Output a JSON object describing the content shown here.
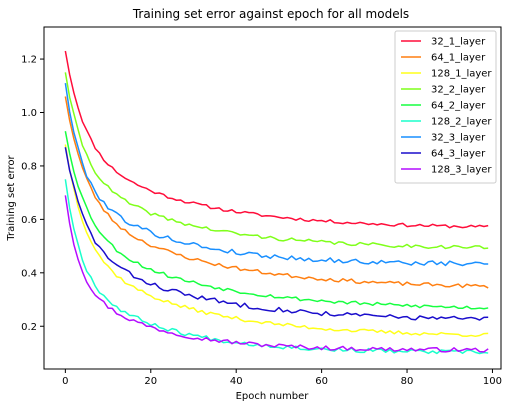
{
  "chart_data": {
    "type": "line",
    "title": "Training set error against epoch for all models",
    "xlabel": "Epoch number",
    "ylabel": "Training set error",
    "xlim": [
      -5,
      102
    ],
    "ylim": [
      0.04,
      1.32
    ],
    "xticks": [
      0,
      20,
      40,
      60,
      80,
      100
    ],
    "yticks": [
      0.2,
      0.4,
      0.6,
      0.8,
      1.0,
      1.2
    ],
    "ytick_labels": [
      "0.2",
      "0.4",
      "0.6",
      "0.8",
      "1.0",
      "1.2"
    ],
    "grid": false,
    "legend_position": "top-right",
    "series": [
      {
        "name": "32_1_layer",
        "color": "#ff0d3a",
        "start": 1.23,
        "end": 0.565,
        "k": 0.07,
        "noise": 0.006,
        "seed": 11
      },
      {
        "name": "64_1_layer",
        "color": "#ff7f11",
        "start": 1.06,
        "end": 0.34,
        "k": 0.065,
        "noise": 0.007,
        "seed": 23
      },
      {
        "name": "128_1_layer",
        "color": "#ffff1a",
        "start": 0.88,
        "end": 0.16,
        "k": 0.07,
        "noise": 0.007,
        "seed": 37
      },
      {
        "name": "32_2_layer",
        "color": "#7fff1a",
        "start": 1.15,
        "end": 0.49,
        "k": 0.075,
        "noise": 0.007,
        "seed": 41
      },
      {
        "name": "64_2_layer",
        "color": "#17ff40",
        "start": 0.93,
        "end": 0.26,
        "k": 0.065,
        "noise": 0.007,
        "seed": 53
      },
      {
        "name": "128_2_layer",
        "color": "#1affcc",
        "start": 0.75,
        "end": 0.1,
        "k": 0.09,
        "noise": 0.008,
        "seed": 67
      },
      {
        "name": "32_3_layer",
        "color": "#198fff",
        "start": 1.11,
        "end": 0.43,
        "k": 0.085,
        "noise": 0.009,
        "seed": 79
      },
      {
        "name": "64_3_layer",
        "color": "#1a0dcc",
        "start": 0.87,
        "end": 0.22,
        "k": 0.07,
        "noise": 0.009,
        "seed": 83
      },
      {
        "name": "128_3_layer",
        "color": "#b30dff",
        "start": 0.69,
        "end": 0.11,
        "k": 0.1,
        "noise": 0.008,
        "seed": 97
      }
    ]
  }
}
